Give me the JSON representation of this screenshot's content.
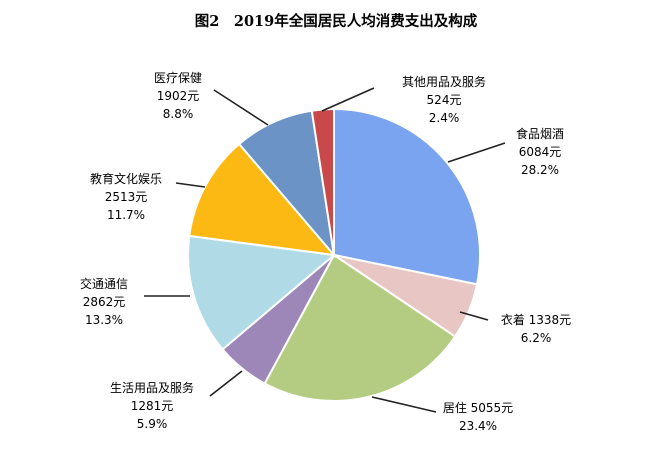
{
  "chart_data": {
    "type": "pie",
    "title": "图2　2019年全国居民人均消费支出及构成",
    "slices": [
      {
        "name": "食品烟酒",
        "value": 6084,
        "value_label": "6084元",
        "percent": 28.2,
        "percent_label": "28.2%",
        "color": "#7aa3f0"
      },
      {
        "name": "衣着",
        "value": 1338,
        "value_label": "1338元",
        "percent": 6.2,
        "percent_label": "6.2%",
        "color": "#e8c6c4"
      },
      {
        "name": "居住",
        "value": 5055,
        "value_label": "5055元",
        "percent": 23.4,
        "percent_label": "23.4%",
        "color": "#b4cc82"
      },
      {
        "name": "生活用品及服务",
        "value": 1281,
        "value_label": "1281元",
        "percent": 5.9,
        "percent_label": "5.9%",
        "color": "#9d87b8"
      },
      {
        "name": "交通通信",
        "value": 2862,
        "value_label": "2862元",
        "percent": 13.3,
        "percent_label": "13.3%",
        "color": "#b0dbe6"
      },
      {
        "name": "教育文化娱乐",
        "value": 2513,
        "value_label": "2513元",
        "percent": 11.7,
        "percent_label": "11.7%",
        "color": "#fdb913"
      },
      {
        "name": "医疗保健",
        "value": 1902,
        "value_label": "1902元",
        "percent": 8.8,
        "percent_label": "8.8%",
        "color": "#6b93c6"
      },
      {
        "name": "其他用品及服务",
        "value": 524,
        "value_label": "524元",
        "percent": 2.4,
        "percent_label": "2.4%",
        "color": "#c9494b"
      }
    ]
  }
}
